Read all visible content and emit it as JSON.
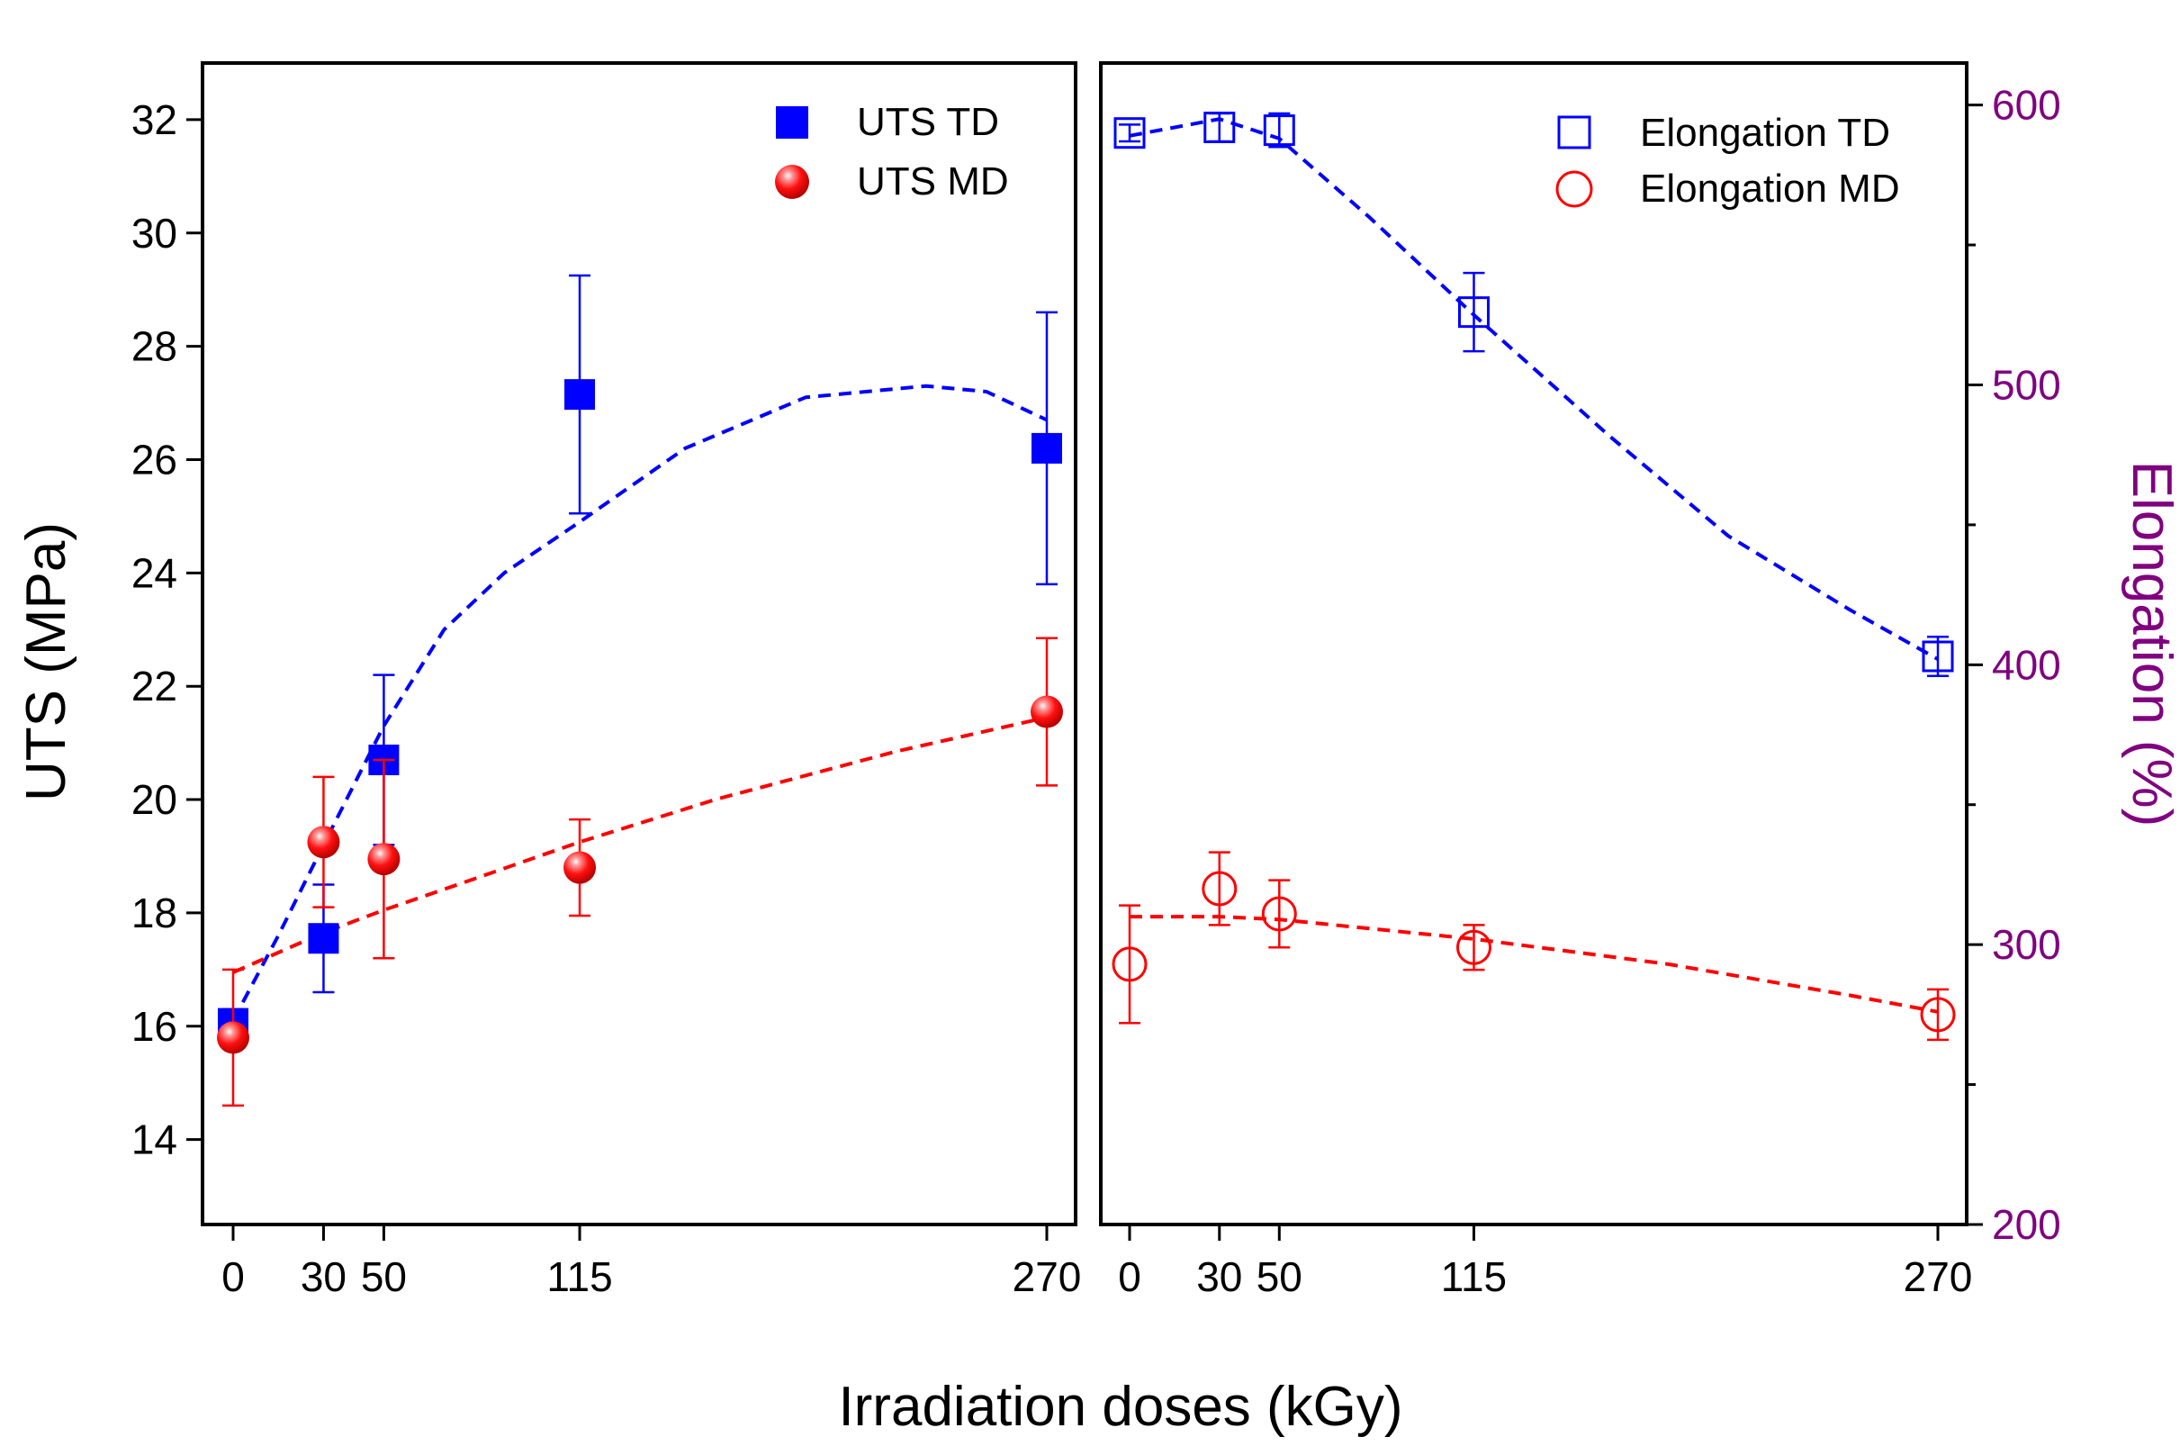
{
  "xlabel": "Irradiation doses (kGy)",
  "colors": {
    "td": "#0000ff",
    "md": "#ff0000",
    "elongation_axis": "#800080",
    "frame": "#000000"
  },
  "chart_data": [
    {
      "type": "scatter",
      "panel": "left",
      "ylabel": "UTS (MPa)",
      "xlabel": "Irradiation doses (kGy)",
      "xlim": [
        -5,
        280
      ],
      "ylim": [
        12.5,
        33
      ],
      "x_ticks": [
        0,
        30,
        50,
        115,
        270
      ],
      "y_ticks": [
        14,
        16,
        18,
        20,
        22,
        24,
        26,
        28,
        30,
        32
      ],
      "legend_position": "top-right",
      "series": [
        {
          "name": "UTS TD",
          "marker": "filled-square",
          "color": "#0000ff",
          "x": [
            0,
            30,
            50,
            115,
            270
          ],
          "y": [
            16.05,
            17.55,
            20.7,
            27.15,
            26.2
          ],
          "yerr": [
            0.25,
            0.95,
            1.5,
            2.1,
            2.4
          ],
          "fit_x": [
            0,
            15,
            30,
            50,
            70,
            90,
            115,
            150,
            190,
            230,
            250,
            270
          ],
          "fit_y": [
            16.1,
            17.6,
            19.2,
            21.3,
            23.0,
            24.0,
            24.9,
            26.2,
            27.1,
            27.3,
            27.2,
            26.7
          ]
        },
        {
          "name": "UTS MD",
          "marker": "filled-sphere",
          "color": "#ff0000",
          "x": [
            0,
            30,
            50,
            115,
            270
          ],
          "y": [
            15.8,
            19.25,
            18.95,
            18.8,
            21.55
          ],
          "yerr": [
            1.2,
            1.15,
            1.75,
            0.85,
            1.3
          ],
          "fit_x": [
            0,
            30,
            50,
            80,
            115,
            160,
            220,
            270
          ],
          "fit_y": [
            16.95,
            17.65,
            18.05,
            18.6,
            19.25,
            20.0,
            20.85,
            21.45
          ]
        }
      ]
    },
    {
      "type": "scatter",
      "panel": "right",
      "ylabel": "Elongation (%)",
      "xlabel": "Irradiation doses (kGy)",
      "xlim": [
        -5,
        280
      ],
      "ylim": [
        200,
        615
      ],
      "x_ticks": [
        0,
        30,
        50,
        115,
        270
      ],
      "y_ticks": [
        200,
        300,
        400,
        500,
        600
      ],
      "y_minor_ticks": [
        250,
        350,
        450,
        550
      ],
      "legend_position": "top-right",
      "series": [
        {
          "name": "Elongation TD",
          "marker": "open-square",
          "color": "#0000ff",
          "x": [
            0,
            30,
            50,
            115,
            270
          ],
          "y": [
            590,
            592,
            591,
            526,
            403
          ],
          "yerr": [
            3,
            5,
            6,
            14,
            7
          ],
          "fit_x": [
            0,
            30,
            50,
            80,
            115,
            160,
            200,
            240,
            270
          ],
          "fit_y": [
            589,
            595,
            588,
            560,
            525,
            482,
            446,
            420,
            402
          ]
        },
        {
          "name": "Elongation MD",
          "marker": "open-circle",
          "color": "#ff0000",
          "x": [
            0,
            30,
            50,
            115,
            270
          ],
          "y": [
            293,
            320,
            311,
            299,
            275
          ],
          "yerr": [
            21,
            13,
            12,
            8,
            9
          ],
          "fit_x": [
            0,
            30,
            50,
            115,
            180,
            240,
            270
          ],
          "fit_y": [
            310,
            310,
            309,
            302,
            293,
            282,
            276
          ]
        }
      ]
    }
  ]
}
